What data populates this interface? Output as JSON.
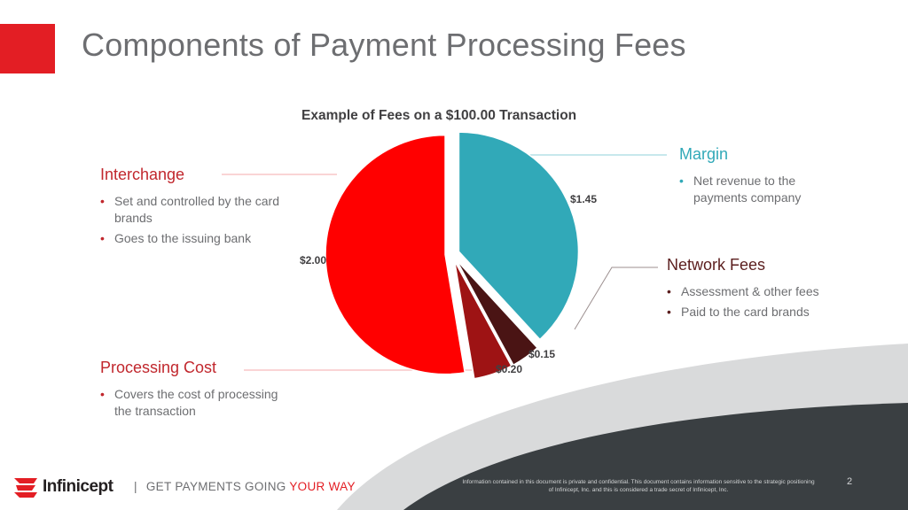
{
  "slide": {
    "title": "Components of Payment Processing Fees",
    "page_number": "2"
  },
  "colors": {
    "accent": "#e31e24",
    "interchange": "#ff0000",
    "margin": "#31a9b8",
    "processing": "#9e1314",
    "network": "#4a1414",
    "footer_band": "#3a3f42"
  },
  "chart_data": {
    "type": "pie",
    "title": "Example of Fees on a $100.00 Transaction",
    "exploded": true,
    "start_angle_deg": 0,
    "direction": "clockwise",
    "categories": [
      "Margin",
      "Network Fees",
      "Processing Cost",
      "Interchange"
    ],
    "values": [
      1.45,
      0.15,
      0.2,
      2.0
    ],
    "data_labels": [
      "$1.45",
      "$0.15",
      "$0.20",
      "$2.00"
    ],
    "slice_colors": [
      "#31a9b8",
      "#4a1414",
      "#9e1314",
      "#ff0000"
    ]
  },
  "callouts": {
    "interchange": {
      "title": "Interchange",
      "bullets": [
        "Set and controlled by the card brands",
        "Goes to the issuing bank"
      ]
    },
    "processing": {
      "title": "Processing Cost",
      "bullets": [
        "Covers the cost of processing the transaction"
      ]
    },
    "margin": {
      "title": "Margin",
      "bullets": [
        "Net revenue to the payments company"
      ]
    },
    "network": {
      "title": "Network Fees",
      "bullets": [
        "Assessment & other fees",
        "Paid to the card brands"
      ]
    }
  },
  "footer": {
    "logo_text": "Infinicept",
    "logo_icon": "infinicept-logo-icon",
    "tagline_sep": "|",
    "tagline_main": "GET PAYMENTS GOING",
    "tagline_accent": "YOUR WAY",
    "disclaimer": "Information contained in this document is private and confidential. This document contains information sensitive to the strategic positioning of Infinicept, Inc. and this is considered a trade secret of Infinicept, Inc."
  }
}
